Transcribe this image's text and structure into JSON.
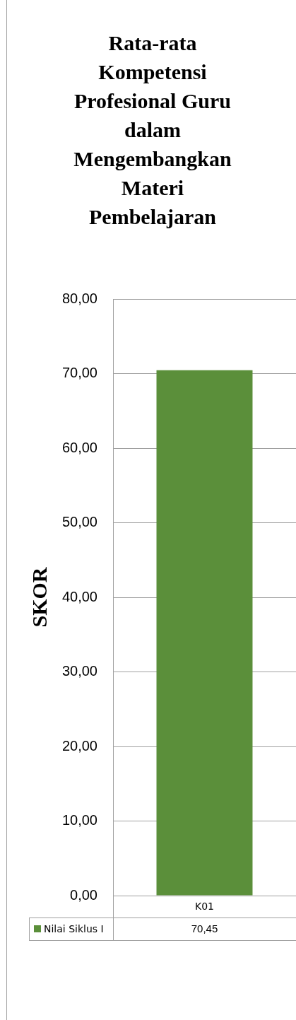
{
  "chart_data": {
    "type": "bar",
    "title": "Rata-rata Kompetensi Profesional Guru dalam Mengembangkan Materi Pembelajaran",
    "ylabel": "SKOR",
    "categories": [
      "K01"
    ],
    "series": [
      {
        "name": "Nilai Siklus I",
        "color": "#5b8f3a",
        "values": [
          70.45
        ],
        "value_labels": [
          "70,45"
        ]
      }
    ],
    "ylim": [
      0,
      80
    ],
    "yticks": [
      {
        "value": 0,
        "label": "0,00"
      },
      {
        "value": 10,
        "label": "10,00"
      },
      {
        "value": 20,
        "label": "20,00"
      },
      {
        "value": 30,
        "label": "30,00"
      },
      {
        "value": 40,
        "label": "40,00"
      },
      {
        "value": 50,
        "label": "50,00"
      },
      {
        "value": 60,
        "label": "60,00"
      },
      {
        "value": 70,
        "label": "70,00"
      },
      {
        "value": 80,
        "label": "80,00"
      }
    ],
    "grid": "y",
    "legend": "bottom"
  }
}
